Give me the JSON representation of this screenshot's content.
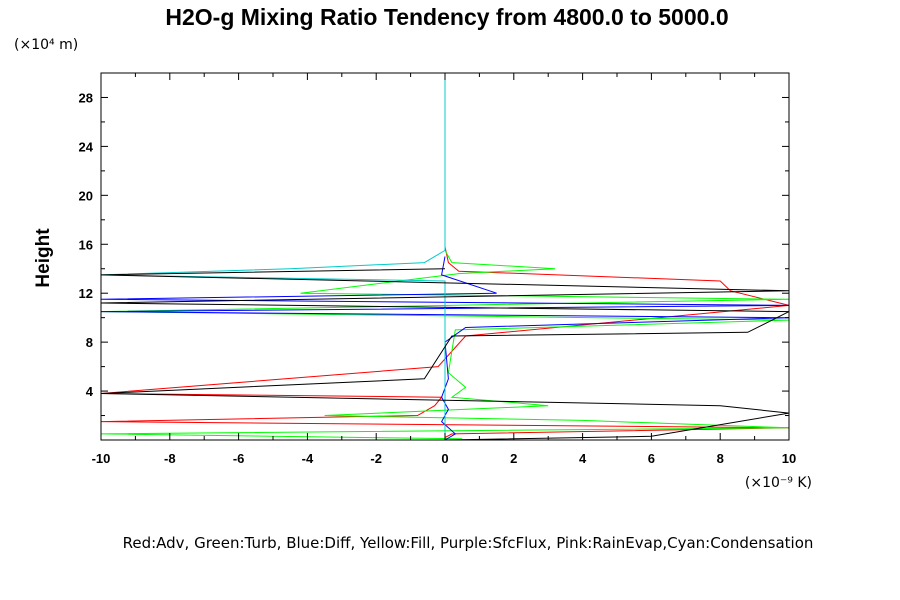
{
  "chart_data": {
    "type": "line",
    "title": "H2O-g Mixing Ratio Tendency from 4800.0 to 5000.0",
    "ylabel": "Height",
    "xlabel": "",
    "y_unit": "(×10⁴ m)",
    "x_unit": "(×10⁻⁹ K)",
    "xlim": [
      -10,
      10
    ],
    "ylim": [
      0,
      30
    ],
    "x_ticks": [
      -10,
      -8,
      -6,
      -4,
      -2,
      0,
      2,
      4,
      6,
      8,
      10
    ],
    "y_ticks": [
      4,
      8,
      12,
      16,
      20,
      24,
      28
    ],
    "legend_text": "Red:Adv,  Green:Turb,  Blue:Diff,  Yellow:Fill,  Purple:SfcFlux,  Pink:RainEvap,Cyan:Condensation",
    "series": [
      {
        "name": "Red:Adv",
        "color": "#ff0000",
        "x": [
          0,
          0.1,
          0.4,
          8.0,
          8.3,
          10,
          0.6,
          -0.2,
          -10,
          -0.1,
          -0.3,
          -0.8,
          -10,
          10,
          0.2,
          0.0
        ],
        "y": [
          15.8,
          14.5,
          13.8,
          13.0,
          12.2,
          11.0,
          8.5,
          6.0,
          3.8,
          3.5,
          2.8,
          2.0,
          1.5,
          1.0,
          0.5,
          0.2
        ]
      },
      {
        "name": "Green:Turb",
        "color": "#00ff00",
        "x": [
          0,
          0.2,
          3.2,
          0.4,
          -4.2,
          10,
          -10,
          10,
          0.3,
          0.1,
          0.6,
          0.2,
          3.0,
          -3.5,
          4.0,
          10,
          -10,
          0.5
        ],
        "y": [
          15.5,
          14.5,
          14.0,
          13.6,
          12.0,
          11.5,
          10.5,
          9.8,
          9.0,
          5.5,
          4.3,
          3.5,
          2.8,
          2.0,
          1.6,
          1.0,
          0.5,
          0.1
        ]
      },
      {
        "name": "Blue:Diff",
        "color": "#0000ff",
        "x": [
          0,
          -0.1,
          1.5,
          -10,
          10,
          -10,
          10,
          0.6,
          0.0,
          0.1,
          -0.1,
          0.1,
          -0.1,
          0.3,
          0.0
        ],
        "y": [
          15.0,
          13.5,
          12.0,
          11.5,
          11.0,
          10.5,
          10.0,
          9.2,
          8.0,
          5.0,
          3.5,
          2.5,
          1.5,
          0.5,
          0.0
        ]
      },
      {
        "name": "Cyan:Condensation",
        "color": "#00cccc",
        "x": [
          0,
          0,
          -0.6,
          -4.5,
          -10,
          0,
          0,
          0
        ],
        "y": [
          30,
          15.5,
          14.5,
          14.0,
          13.5,
          13.0,
          5.0,
          0.0
        ]
      },
      {
        "name": "Black",
        "color": "#000000",
        "x": [
          0,
          -10,
          10,
          -10,
          10,
          8.8,
          0.2,
          -0.6,
          -10,
          8.0,
          10,
          6.0,
          0.0
        ],
        "y": [
          14.0,
          13.5,
          12.2,
          11.2,
          10.5,
          8.8,
          8.5,
          5.0,
          3.8,
          2.8,
          2.2,
          0.3,
          0.0
        ]
      }
    ]
  }
}
